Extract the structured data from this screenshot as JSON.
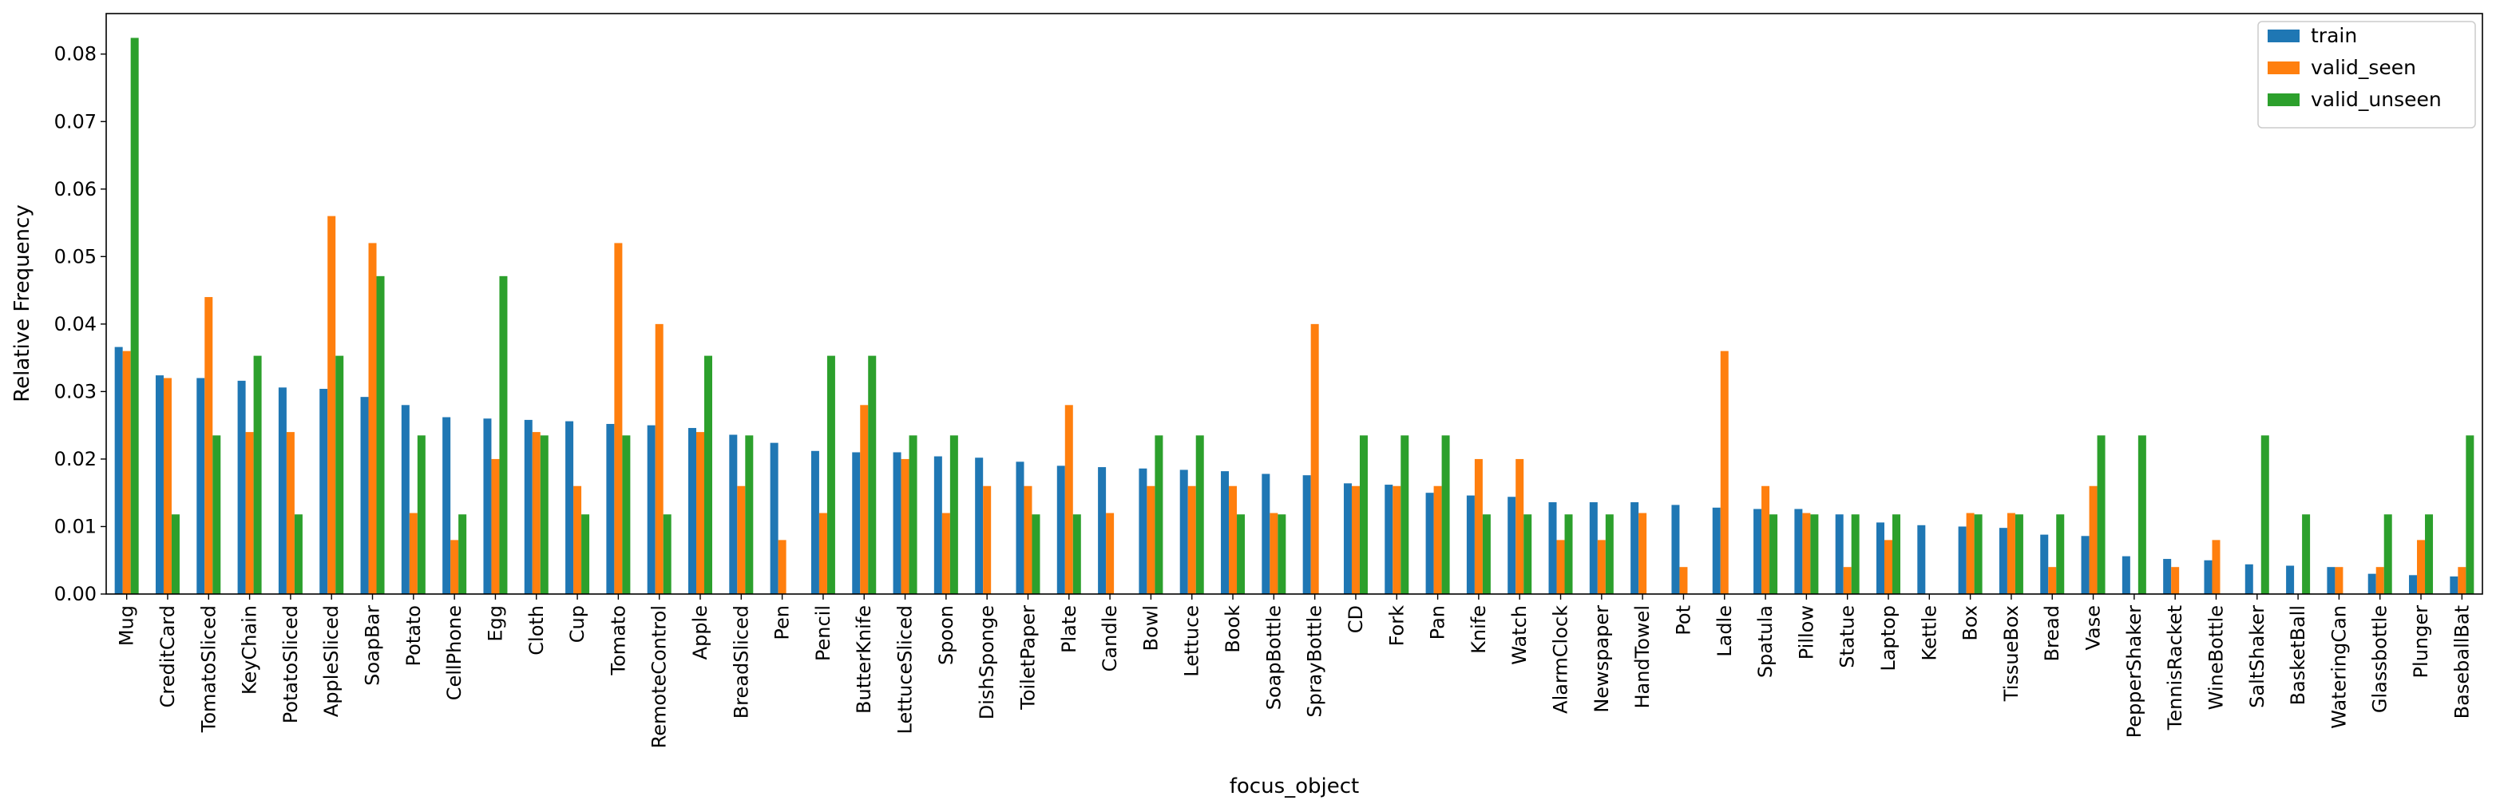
{
  "chart_data": {
    "type": "bar",
    "title": "",
    "xlabel": "focus_object",
    "ylabel": "Relative Frequency",
    "ylim": [
      0,
      0.086
    ],
    "yticks": [
      "0.00",
      "0.01",
      "0.02",
      "0.03",
      "0.04",
      "0.05",
      "0.06",
      "0.07",
      "0.08"
    ],
    "grid": false,
    "legend_position": "top-right",
    "categories": [
      "Mug",
      "CreditCard",
      "TomatoSliced",
      "KeyChain",
      "PotatoSliced",
      "AppleSliced",
      "SoapBar",
      "Potato",
      "CellPhone",
      "Egg",
      "Cloth",
      "Cup",
      "Tomato",
      "RemoteControl",
      "Apple",
      "BreadSliced",
      "Pen",
      "Pencil",
      "ButterKnife",
      "LettuceSliced",
      "Spoon",
      "DishSponge",
      "ToiletPaper",
      "Plate",
      "Candle",
      "Bowl",
      "Lettuce",
      "Book",
      "SoapBottle",
      "SprayBottle",
      "CD",
      "Fork",
      "Pan",
      "Knife",
      "Watch",
      "AlarmClock",
      "Newspaper",
      "HandTowel",
      "Pot",
      "Ladle",
      "Spatula",
      "Pillow",
      "Statue",
      "Laptop",
      "Kettle",
      "Box",
      "TissueBox",
      "Bread",
      "Vase",
      "PepperShaker",
      "TennisRacket",
      "WineBottle",
      "SaltShaker",
      "BasketBall",
      "WateringCan",
      "Glassbottle",
      "Plunger",
      "BaseballBat"
    ],
    "series": [
      {
        "name": "train",
        "color": "#1f77b4",
        "values": [
          0.0366,
          0.0324,
          0.032,
          0.0316,
          0.0306,
          0.0304,
          0.0292,
          0.028,
          0.0262,
          0.026,
          0.0258,
          0.0256,
          0.0252,
          0.025,
          0.0246,
          0.0236,
          0.0224,
          0.0212,
          0.021,
          0.021,
          0.0204,
          0.0202,
          0.0196,
          0.019,
          0.0188,
          0.0186,
          0.0184,
          0.0182,
          0.0178,
          0.0176,
          0.0164,
          0.0162,
          0.015,
          0.0146,
          0.0144,
          0.0136,
          0.0136,
          0.0136,
          0.0132,
          0.0128,
          0.0126,
          0.0126,
          0.0118,
          0.0106,
          0.0102,
          0.01,
          0.0098,
          0.0088,
          0.0086,
          0.0056,
          0.0052,
          0.005,
          0.0044,
          0.0042,
          0.004,
          0.003,
          0.0028,
          0.0026
        ]
      },
      {
        "name": "valid_seen",
        "color": "#ff7f0e",
        "values": [
          0.036,
          0.032,
          0.044,
          0.024,
          0.024,
          0.056,
          0.052,
          0.012,
          0.008,
          0.02,
          0.024,
          0.016,
          0.052,
          0.04,
          0.024,
          0.016,
          0.008,
          0.012,
          0.028,
          0.02,
          0.012,
          0.016,
          0.016,
          0.028,
          0.012,
          0.016,
          0.016,
          0.016,
          0.012,
          0.04,
          0.016,
          0.016,
          0.016,
          0.02,
          0.02,
          0.008,
          0.008,
          0.012,
          0.004,
          0.036,
          0.016,
          0.012,
          0.004,
          0.008,
          0,
          0.012,
          0.012,
          0.004,
          0.016,
          0,
          0.004,
          0.008,
          0,
          0,
          0.004,
          0.004,
          0.008,
          0.004
        ]
      },
      {
        "name": "valid_unseen",
        "color": "#2ca02c",
        "values": [
          0.0824,
          0.0118,
          0.0235,
          0.0353,
          0.0118,
          0.0353,
          0.0471,
          0.0235,
          0.0118,
          0.0471,
          0.0235,
          0.0118,
          0.0235,
          0.0118,
          0.0353,
          0.0235,
          0,
          0.0353,
          0.0353,
          0.0235,
          0.0235,
          0,
          0.0118,
          0.0118,
          0,
          0.0235,
          0.0235,
          0.0118,
          0.0118,
          0,
          0.0235,
          0.0235,
          0.0235,
          0.0118,
          0.0118,
          0.0118,
          0.0118,
          0,
          0,
          0,
          0.0118,
          0.0118,
          0.0118,
          0.0118,
          0,
          0.0118,
          0.0118,
          0.0118,
          0.0235,
          0.0235,
          0,
          0,
          0.0235,
          0.0118,
          0,
          0.0118,
          0.0118,
          0.0235
        ]
      }
    ]
  }
}
